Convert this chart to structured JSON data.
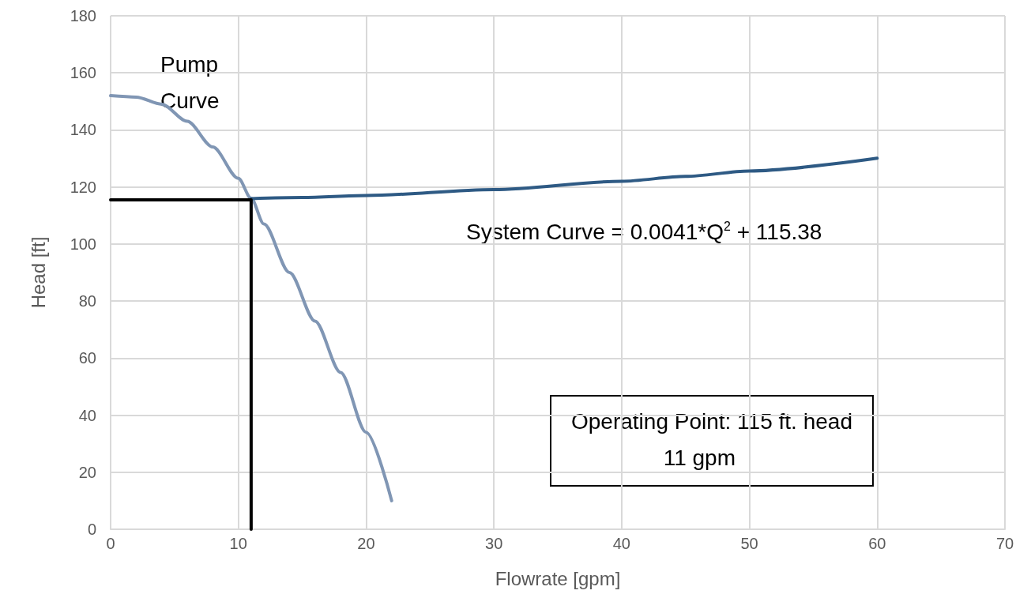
{
  "chart_data": {
    "type": "line",
    "xlabel": "Flowrate [gpm]",
    "ylabel": "Head [ft]",
    "xlim": [
      0,
      70
    ],
    "xticks": [
      0,
      10,
      20,
      30,
      40,
      50,
      60,
      70
    ],
    "ylim": [
      0,
      180
    ],
    "yticks": [
      0,
      20,
      40,
      60,
      80,
      100,
      120,
      140,
      160,
      180
    ],
    "grid": true,
    "marker": "none",
    "line_style": "solid",
    "series": [
      {
        "color": "#8096b4",
        "x": [
          0,
          2,
          4,
          6,
          8,
          10,
          11,
          12,
          14,
          16,
          18,
          20,
          22
        ],
        "values": [
          152,
          151.5,
          149,
          143,
          134,
          123,
          116,
          107,
          90,
          73,
          55,
          34,
          10
        ]
      },
      {
        "color": "#2e5a84",
        "x": [
          11,
          15,
          20,
          30,
          40,
          45,
          50,
          60
        ],
        "values": [
          115.9,
          116.3,
          117,
          119.1,
          122,
          123.7,
          125.6,
          130.1
        ]
      },
      {
        "color": "#000000",
        "x": [
          0,
          11,
          11
        ],
        "values": [
          115.5,
          115.5,
          0
        ]
      }
    ],
    "annotations": [
      "Pump\nCurve",
      "System Curve = 0.0041*Q$^{2}$ + 115.38",
      "Operating Point: 115 ft. head\n               11 gpm"
    ]
  }
}
